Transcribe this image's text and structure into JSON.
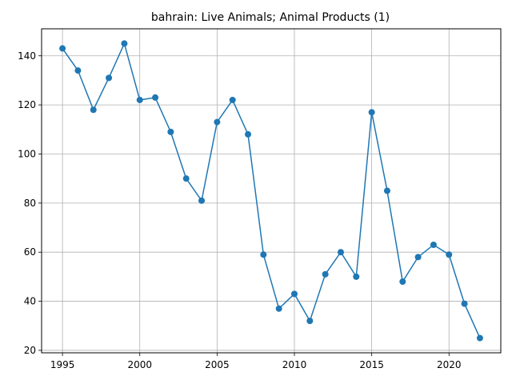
{
  "chart_data": {
    "type": "line",
    "title": "bahrain: Live Animals; Animal Products (1)",
    "xlabel": "",
    "ylabel": "",
    "x": [
      1995,
      1996,
      1997,
      1998,
      1999,
      2000,
      2001,
      2002,
      2003,
      2004,
      2005,
      2006,
      2007,
      2008,
      2009,
      2010,
      2011,
      2012,
      2013,
      2014,
      2015,
      2016,
      2017,
      2018,
      2019,
      2020,
      2021,
      2022
    ],
    "series": [
      {
        "values": [
          143,
          134,
          118,
          131,
          145,
          122,
          123,
          109,
          90,
          81,
          113,
          122,
          108,
          59,
          37,
          43,
          32,
          51,
          60,
          50,
          117,
          85,
          48,
          58,
          63,
          59,
          39,
          25
        ]
      }
    ],
    "xlim": [
      1993.65,
      2023.35
    ],
    "ylim": [
      19,
      151
    ],
    "xticks": [
      1995,
      2000,
      2005,
      2010,
      2015,
      2020
    ],
    "yticks": [
      20,
      40,
      60,
      80,
      100,
      120,
      140
    ],
    "grid": true,
    "legend": "none",
    "line_color": "#1f77b4",
    "marker": "circle"
  }
}
